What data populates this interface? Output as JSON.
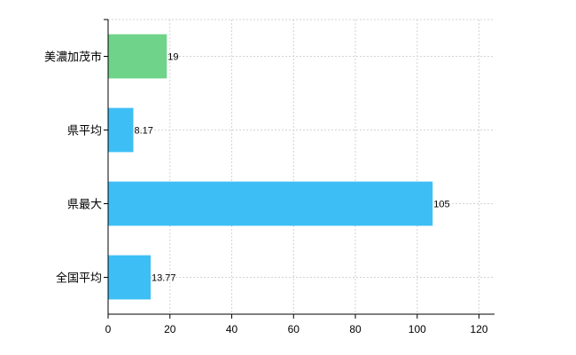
{
  "chart_data": {
    "type": "bar",
    "orientation": "horizontal",
    "categories": [
      "美濃加茂市",
      "県平均",
      "県最大",
      "全国平均"
    ],
    "values": [
      19,
      8.17,
      105,
      13.77
    ],
    "value_labels": [
      "19",
      "8.17",
      "105",
      "13.77"
    ],
    "bar_colors": [
      "#6fd48a",
      "#3dbff5",
      "#3dbff5",
      "#3dbff5"
    ],
    "xlim": [
      0,
      125
    ],
    "xticks": [
      0,
      20,
      40,
      60,
      80,
      100,
      120
    ],
    "grid": true,
    "legend": "none",
    "title": "",
    "xlabel": "",
    "ylabel": ""
  }
}
